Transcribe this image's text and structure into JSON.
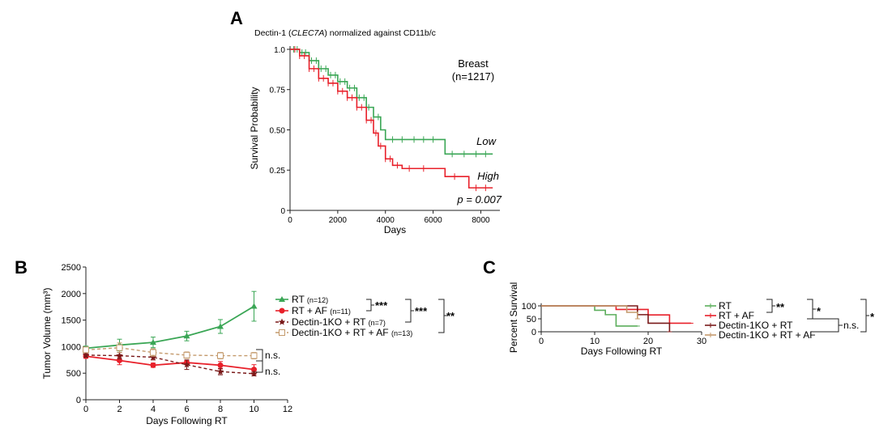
{
  "colors": {
    "axis": "#222222",
    "green": "#3aa655",
    "red": "#e8202a",
    "darkred": "#7a1a1a",
    "tan": "#c49a6c",
    "rt_green": "#5cae5c",
    "grey": "#888888"
  },
  "chart_data": [
    {
      "type": "line",
      "panel": "A",
      "title": "Dectin-1 (",
      "title_gene": "CLEC7A",
      "title_rest": ") normalized against CD11b/c",
      "xlabel": "Days",
      "ylabel": "Survival Probability",
      "xlim": [
        0,
        8800
      ],
      "ylim": [
        0,
        1.02
      ],
      "xticks": [
        0,
        2000,
        4000,
        6000,
        8000
      ],
      "xtick_labels": [
        "0",
        "2000",
        "4000",
        "6000",
        "8000"
      ],
      "yticks": [
        0,
        0.25,
        0.5,
        0.75,
        1.0
      ],
      "ytick_labels": [
        "0",
        "0.25",
        "0.50",
        "0.75",
        "1.0"
      ],
      "annotation_cohort": "Breast",
      "annotation_n": "(n=1217)",
      "annotation_p": "p = 0.007",
      "series": [
        {
          "name": "Low",
          "color": "green",
          "x": [
            0,
            400,
            800,
            1200,
            1600,
            2000,
            2400,
            2800,
            3200,
            3500,
            3800,
            3900,
            4000,
            6400,
            6500,
            8500
          ],
          "values": [
            1.0,
            0.98,
            0.93,
            0.88,
            0.84,
            0.8,
            0.76,
            0.7,
            0.64,
            0.58,
            0.5,
            0.5,
            0.44,
            0.44,
            0.35,
            0.35
          ],
          "censor_x": [
            150,
            300,
            500,
            650,
            900,
            1100,
            1300,
            1500,
            1700,
            1900,
            2100,
            2300,
            2500,
            2700,
            2900,
            3100,
            3300,
            3500,
            3700,
            4300,
            4700,
            5200,
            5600,
            6000,
            6800,
            7300,
            7800,
            8200
          ]
        },
        {
          "name": "High",
          "color": "red",
          "x": [
            0,
            400,
            800,
            1200,
            1600,
            2000,
            2400,
            2800,
            3200,
            3500,
            3700,
            4000,
            4300,
            4700,
            6400,
            6500,
            7400,
            7500,
            8500
          ],
          "values": [
            1.0,
            0.96,
            0.88,
            0.82,
            0.79,
            0.74,
            0.7,
            0.64,
            0.56,
            0.48,
            0.4,
            0.32,
            0.28,
            0.26,
            0.26,
            0.21,
            0.21,
            0.14,
            0.14
          ],
          "censor_x": [
            200,
            400,
            600,
            800,
            1000,
            1200,
            1400,
            1600,
            1800,
            2000,
            2200,
            2400,
            2600,
            2800,
            3000,
            3200,
            3400,
            3600,
            3800,
            4000,
            4200,
            4500,
            5000,
            5600,
            6900,
            7800,
            8200
          ]
        }
      ]
    },
    {
      "type": "line",
      "panel": "B",
      "xlabel": "Days Following RT",
      "ylabel": "Tumor Volume (mm³)",
      "xlim": [
        0,
        12
      ],
      "ylim": [
        0,
        2500
      ],
      "xticks": [
        0,
        2,
        4,
        6,
        8,
        10,
        12
      ],
      "xtick_labels": [
        "0",
        "2",
        "4",
        "6",
        "8",
        "10",
        "12"
      ],
      "yticks": [
        0,
        500,
        1000,
        1500,
        2000,
        2500
      ],
      "ytick_labels": [
        "0",
        "500",
        "1000",
        "1500",
        "2000",
        "2500"
      ],
      "x": [
        0,
        2,
        4,
        6,
        8,
        10
      ],
      "series": [
        {
          "name": "RT",
          "n": "(n=12)",
          "color": "green",
          "dash": false,
          "marker": "triangle",
          "values": [
            970,
            1030,
            1080,
            1200,
            1380,
            1760
          ],
          "err": [
            40,
            110,
            100,
            90,
            130,
            280
          ]
        },
        {
          "name": "RT + AF",
          "n": "(n=11)",
          "color": "red",
          "dash": false,
          "marker": "circle",
          "values": [
            820,
            740,
            650,
            700,
            650,
            570
          ],
          "err": [
            40,
            80,
            40,
            40,
            70,
            90
          ]
        },
        {
          "name": "Dectin-1KO + RT",
          "n": "(n=7)",
          "color": "darkred",
          "dash": true,
          "marker": "star",
          "values": [
            840,
            830,
            800,
            660,
            530,
            490
          ],
          "err": [
            40,
            60,
            50,
            90,
            60,
            40
          ]
        },
        {
          "name": "Dectin-1KO + RT + AF",
          "n": "(n=13)",
          "color": "tan",
          "dash": true,
          "marker": "square",
          "values": [
            940,
            980,
            890,
            840,
            830,
            830
          ],
          "err": [
            40,
            90,
            70,
            60,
            60,
            60
          ]
        }
      ],
      "sig_1": "***",
      "sig_2": "***",
      "sig_3": "**",
      "ns_1": "n.s.",
      "ns_2": "n.s."
    },
    {
      "type": "line",
      "panel": "C",
      "xlabel": "Days Following RT",
      "ylabel": "Percent Survival",
      "xlim": [
        0,
        30
      ],
      "ylim": [
        0,
        110
      ],
      "xticks": [
        0,
        10,
        20,
        30
      ],
      "xtick_labels": [
        "0",
        "10",
        "20",
        "30"
      ],
      "yticks": [
        0,
        50,
        100
      ],
      "ytick_labels": [
        "0",
        "50",
        "100"
      ],
      "series": [
        {
          "name": "RT",
          "color": "rt_green",
          "x": [
            0,
            10,
            10,
            12,
            12,
            14,
            14,
            18
          ],
          "values": [
            100,
            100,
            83,
            83,
            66,
            66,
            22,
            22
          ]
        },
        {
          "name": "RT + AF",
          "color": "red",
          "x": [
            0,
            14,
            14,
            20,
            20,
            24,
            24,
            28
          ],
          "values": [
            100,
            100,
            86,
            86,
            65,
            65,
            33,
            33
          ]
        },
        {
          "name": "Dectin-1KO + RT",
          "color": "darkred",
          "x": [
            0,
            18,
            18,
            20,
            20,
            22,
            22,
            24,
            24
          ],
          "values": [
            100,
            100,
            66,
            66,
            33,
            33,
            33,
            33,
            0
          ]
        },
        {
          "name": "Dectin-1KO + RT + AF",
          "color": "tan",
          "x": [
            0,
            16,
            16,
            18,
            18
          ],
          "values": [
            100,
            100,
            75,
            75,
            50
          ]
        }
      ],
      "sig_1": "**",
      "sig_2": "*",
      "sig_3": "*",
      "ns_1": "n.s."
    }
  ],
  "panels": {
    "a": "A",
    "b": "B",
    "c": "C"
  },
  "legend_a": {
    "low": "Low",
    "high": "High"
  }
}
